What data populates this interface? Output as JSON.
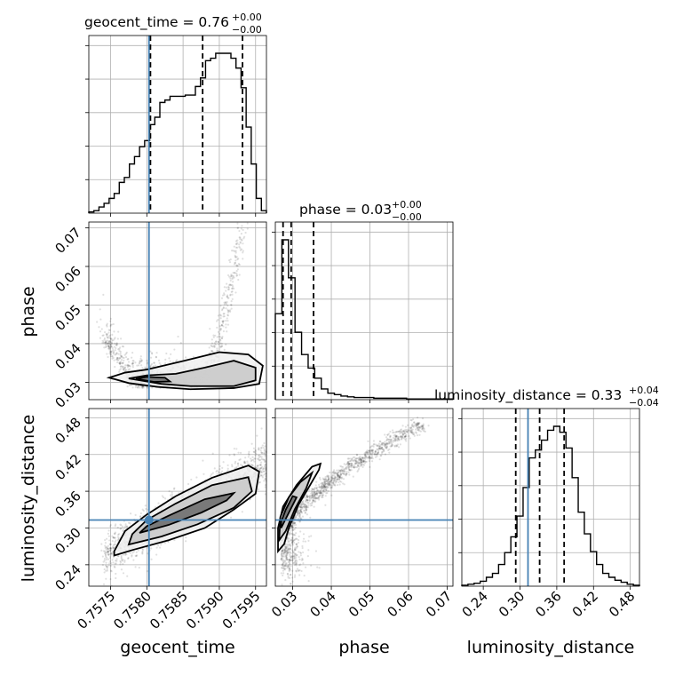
{
  "chart_data": {
    "type": "corner",
    "parameters": [
      "geocent_time",
      "phase",
      "luminosity_distance"
    ],
    "truths": {
      "geocent_time": 0.75803,
      "phase": null,
      "luminosity_distance": 0.313
    },
    "axes": {
      "geocent_time": {
        "range": [
          0.7572,
          0.75965
        ],
        "tick_values": [
          0.7575,
          0.758,
          0.7585,
          0.759,
          0.7595
        ],
        "tick_labels": [
          "0.7575",
          "0.7580",
          "0.7585",
          "0.7590",
          "0.7595"
        ]
      },
      "phase": {
        "range": [
          0.0255,
          0.0715
        ],
        "tick_values": [
          0.03,
          0.04,
          0.05,
          0.06,
          0.07
        ],
        "tick_labels": [
          "0.03",
          "0.04",
          "0.05",
          "0.06",
          "0.07"
        ]
      },
      "luminosity_distance": {
        "range": [
          0.205,
          0.495
        ],
        "tick_values": [
          0.24,
          0.3,
          0.36,
          0.42,
          0.48
        ],
        "tick_labels": [
          "0.24",
          "0.30",
          "0.36",
          "0.42",
          "0.48"
        ]
      }
    },
    "titles": {
      "geocent_time": {
        "prefix": "geocent_time = 0.76",
        "plus": "+0.00",
        "minus": "−0.00"
      },
      "phase": {
        "prefix": "phase = 0.03",
        "plus": "+0.00",
        "minus": "−0.00"
      },
      "luminosity_distance": {
        "prefix": "luminosity_distance = 0.33",
        "plus": "+0.04",
        "minus": "−0.04"
      }
    },
    "ylabels": {
      "phase": "phase",
      "luminosity_distance": "luminosity_distance"
    },
    "histograms": {
      "geocent_time": {
        "edges": [
          0.7572,
          0.75727,
          0.75734,
          0.75741,
          0.75748,
          0.75755,
          0.75762,
          0.75769,
          0.75776,
          0.75783,
          0.7579,
          0.75797,
          0.75804,
          0.75811,
          0.75818,
          0.75825,
          0.75832,
          0.75839,
          0.75846,
          0.75853,
          0.7586,
          0.75867,
          0.75874,
          0.75881,
          0.75888,
          0.75895,
          0.75902,
          0.75909,
          0.75916,
          0.75923,
          0.7593,
          0.75937,
          0.75944,
          0.75951,
          0.75958,
          0.75965
        ],
        "counts": [
          1,
          2,
          5,
          8,
          12,
          16,
          25,
          29,
          40,
          46,
          54,
          59,
          72,
          78,
          90,
          92,
          95,
          95,
          95,
          96,
          96,
          103,
          110,
          124,
          126,
          130,
          130,
          130,
          126,
          118,
          102,
          70,
          40,
          12,
          2
        ]
      },
      "phase": {
        "edges": [
          0.0255,
          0.0272,
          0.0289,
          0.0306,
          0.0323,
          0.034,
          0.0357,
          0.0374,
          0.0391,
          0.0408,
          0.0425,
          0.0442,
          0.0459,
          0.0476,
          0.0493,
          0.051,
          0.0527,
          0.0544,
          0.0561,
          0.0578,
          0.0595,
          0.0612,
          0.0629,
          0.0646,
          0.0663,
          0.068,
          0.0697,
          0.0715
        ],
        "counts": [
          120,
          223,
          170,
          94,
          63,
          44,
          30,
          15,
          9,
          7,
          5,
          4,
          3,
          3,
          3,
          2,
          2,
          2,
          2,
          2,
          1,
          1,
          1,
          1,
          1,
          1,
          1
        ]
      },
      "luminosity_distance": {
        "edges": [
          0.205,
          0.215,
          0.225,
          0.235,
          0.245,
          0.255,
          0.265,
          0.275,
          0.285,
          0.295,
          0.305,
          0.315,
          0.325,
          0.335,
          0.345,
          0.355,
          0.365,
          0.375,
          0.385,
          0.395,
          0.405,
          0.415,
          0.425,
          0.435,
          0.445,
          0.455,
          0.465,
          0.475,
          0.485,
          0.495
        ],
        "counts": [
          1,
          2,
          3,
          5,
          9,
          13,
          22,
          34,
          50,
          71,
          100,
          130,
          138,
          148,
          158,
          162,
          156,
          140,
          110,
          75,
          53,
          35,
          22,
          13,
          9,
          6,
          4,
          2,
          1
        ]
      }
    },
    "quantiles": {
      "geocent_time": [
        0.75805,
        0.75877,
        0.75932
      ],
      "phase": [
        0.0275,
        0.0296,
        0.0354
      ],
      "luminosity_distance": [
        0.293,
        0.332,
        0.372
      ]
    },
    "contours": {
      "phase_vs_geocent_time": [
        [
          [
            0.75748,
            0.0312
          ],
          [
            0.75775,
            0.0298
          ],
          [
            0.75815,
            0.0288
          ],
          [
            0.7586,
            0.0282
          ],
          [
            0.7592,
            0.0285
          ],
          [
            0.75955,
            0.0296
          ],
          [
            0.7596,
            0.0343
          ],
          [
            0.7594,
            0.0372
          ],
          [
            0.759,
            0.0378
          ],
          [
            0.7585,
            0.0355
          ],
          [
            0.758,
            0.0333
          ],
          [
            0.7577,
            0.0325
          ],
          [
            0.75748,
            0.0312
          ]
        ],
        [
          [
            0.75775,
            0.031
          ],
          [
            0.7582,
            0.0296
          ],
          [
            0.7586,
            0.029
          ],
          [
            0.7592,
            0.029
          ],
          [
            0.7595,
            0.0305
          ],
          [
            0.7595,
            0.0338
          ],
          [
            0.7592,
            0.0356
          ],
          [
            0.7588,
            0.0338
          ],
          [
            0.7584,
            0.0322
          ],
          [
            0.758,
            0.0318
          ],
          [
            0.75775,
            0.031
          ]
        ],
        [
          [
            0.75785,
            0.0309
          ],
          [
            0.7581,
            0.0301
          ],
          [
            0.75832,
            0.0302
          ],
          [
            0.75825,
            0.0312
          ],
          [
            0.758,
            0.0314
          ],
          [
            0.75785,
            0.0309
          ]
        ]
      ],
      "luminosity_distance_vs_geocent_time": [
        [
          [
            0.75755,
            0.255
          ],
          [
            0.7578,
            0.264
          ],
          [
            0.7583,
            0.28
          ],
          [
            0.7588,
            0.3
          ],
          [
            0.7592,
            0.33
          ],
          [
            0.7595,
            0.356
          ],
          [
            0.75955,
            0.392
          ],
          [
            0.7594,
            0.402
          ],
          [
            0.7589,
            0.382
          ],
          [
            0.7584,
            0.352
          ],
          [
            0.758,
            0.322
          ],
          [
            0.7577,
            0.295
          ],
          [
            0.75755,
            0.262
          ],
          [
            0.75755,
            0.255
          ]
        ],
        [
          [
            0.75775,
            0.273
          ],
          [
            0.7582,
            0.286
          ],
          [
            0.7587,
            0.306
          ],
          [
            0.7592,
            0.333
          ],
          [
            0.75945,
            0.36
          ],
          [
            0.7594,
            0.383
          ],
          [
            0.7589,
            0.37
          ],
          [
            0.7584,
            0.34
          ],
          [
            0.758,
            0.313
          ],
          [
            0.7578,
            0.29
          ],
          [
            0.75775,
            0.273
          ]
        ],
        [
          [
            0.7579,
            0.292
          ],
          [
            0.7583,
            0.305
          ],
          [
            0.75875,
            0.325
          ],
          [
            0.7591,
            0.345
          ],
          [
            0.7592,
            0.357
          ],
          [
            0.7588,
            0.347
          ],
          [
            0.7583,
            0.32
          ],
          [
            0.758,
            0.303
          ],
          [
            0.7579,
            0.292
          ]
        ]
      ],
      "luminosity_distance_vs_phase": [
        [
          [
            0.0262,
            0.262
          ],
          [
            0.0278,
            0.274
          ],
          [
            0.029,
            0.3
          ],
          [
            0.0315,
            0.338
          ],
          [
            0.0345,
            0.37
          ],
          [
            0.0368,
            0.395
          ],
          [
            0.0372,
            0.405
          ],
          [
            0.035,
            0.4
          ],
          [
            0.031,
            0.37
          ],
          [
            0.0275,
            0.335
          ],
          [
            0.0262,
            0.3
          ],
          [
            0.0262,
            0.262
          ]
        ],
        [
          [
            0.0265,
            0.28
          ],
          [
            0.0282,
            0.295
          ],
          [
            0.0305,
            0.33
          ],
          [
            0.0335,
            0.365
          ],
          [
            0.035,
            0.39
          ],
          [
            0.032,
            0.375
          ],
          [
            0.029,
            0.35
          ],
          [
            0.0268,
            0.318
          ],
          [
            0.0265,
            0.28
          ]
        ],
        [
          [
            0.027,
            0.3
          ],
          [
            0.029,
            0.325
          ],
          [
            0.031,
            0.35
          ],
          [
            0.03,
            0.352
          ],
          [
            0.0282,
            0.33
          ],
          [
            0.027,
            0.31
          ],
          [
            0.027,
            0.3
          ]
        ]
      ]
    },
    "xlabels": [
      "geocent_time",
      "phase",
      "luminosity_distance"
    ],
    "colors": {
      "truth": "#4682b4",
      "hist": "#000000",
      "grid": "#b0b0b0",
      "density": "#000000"
    },
    "grid": true
  }
}
